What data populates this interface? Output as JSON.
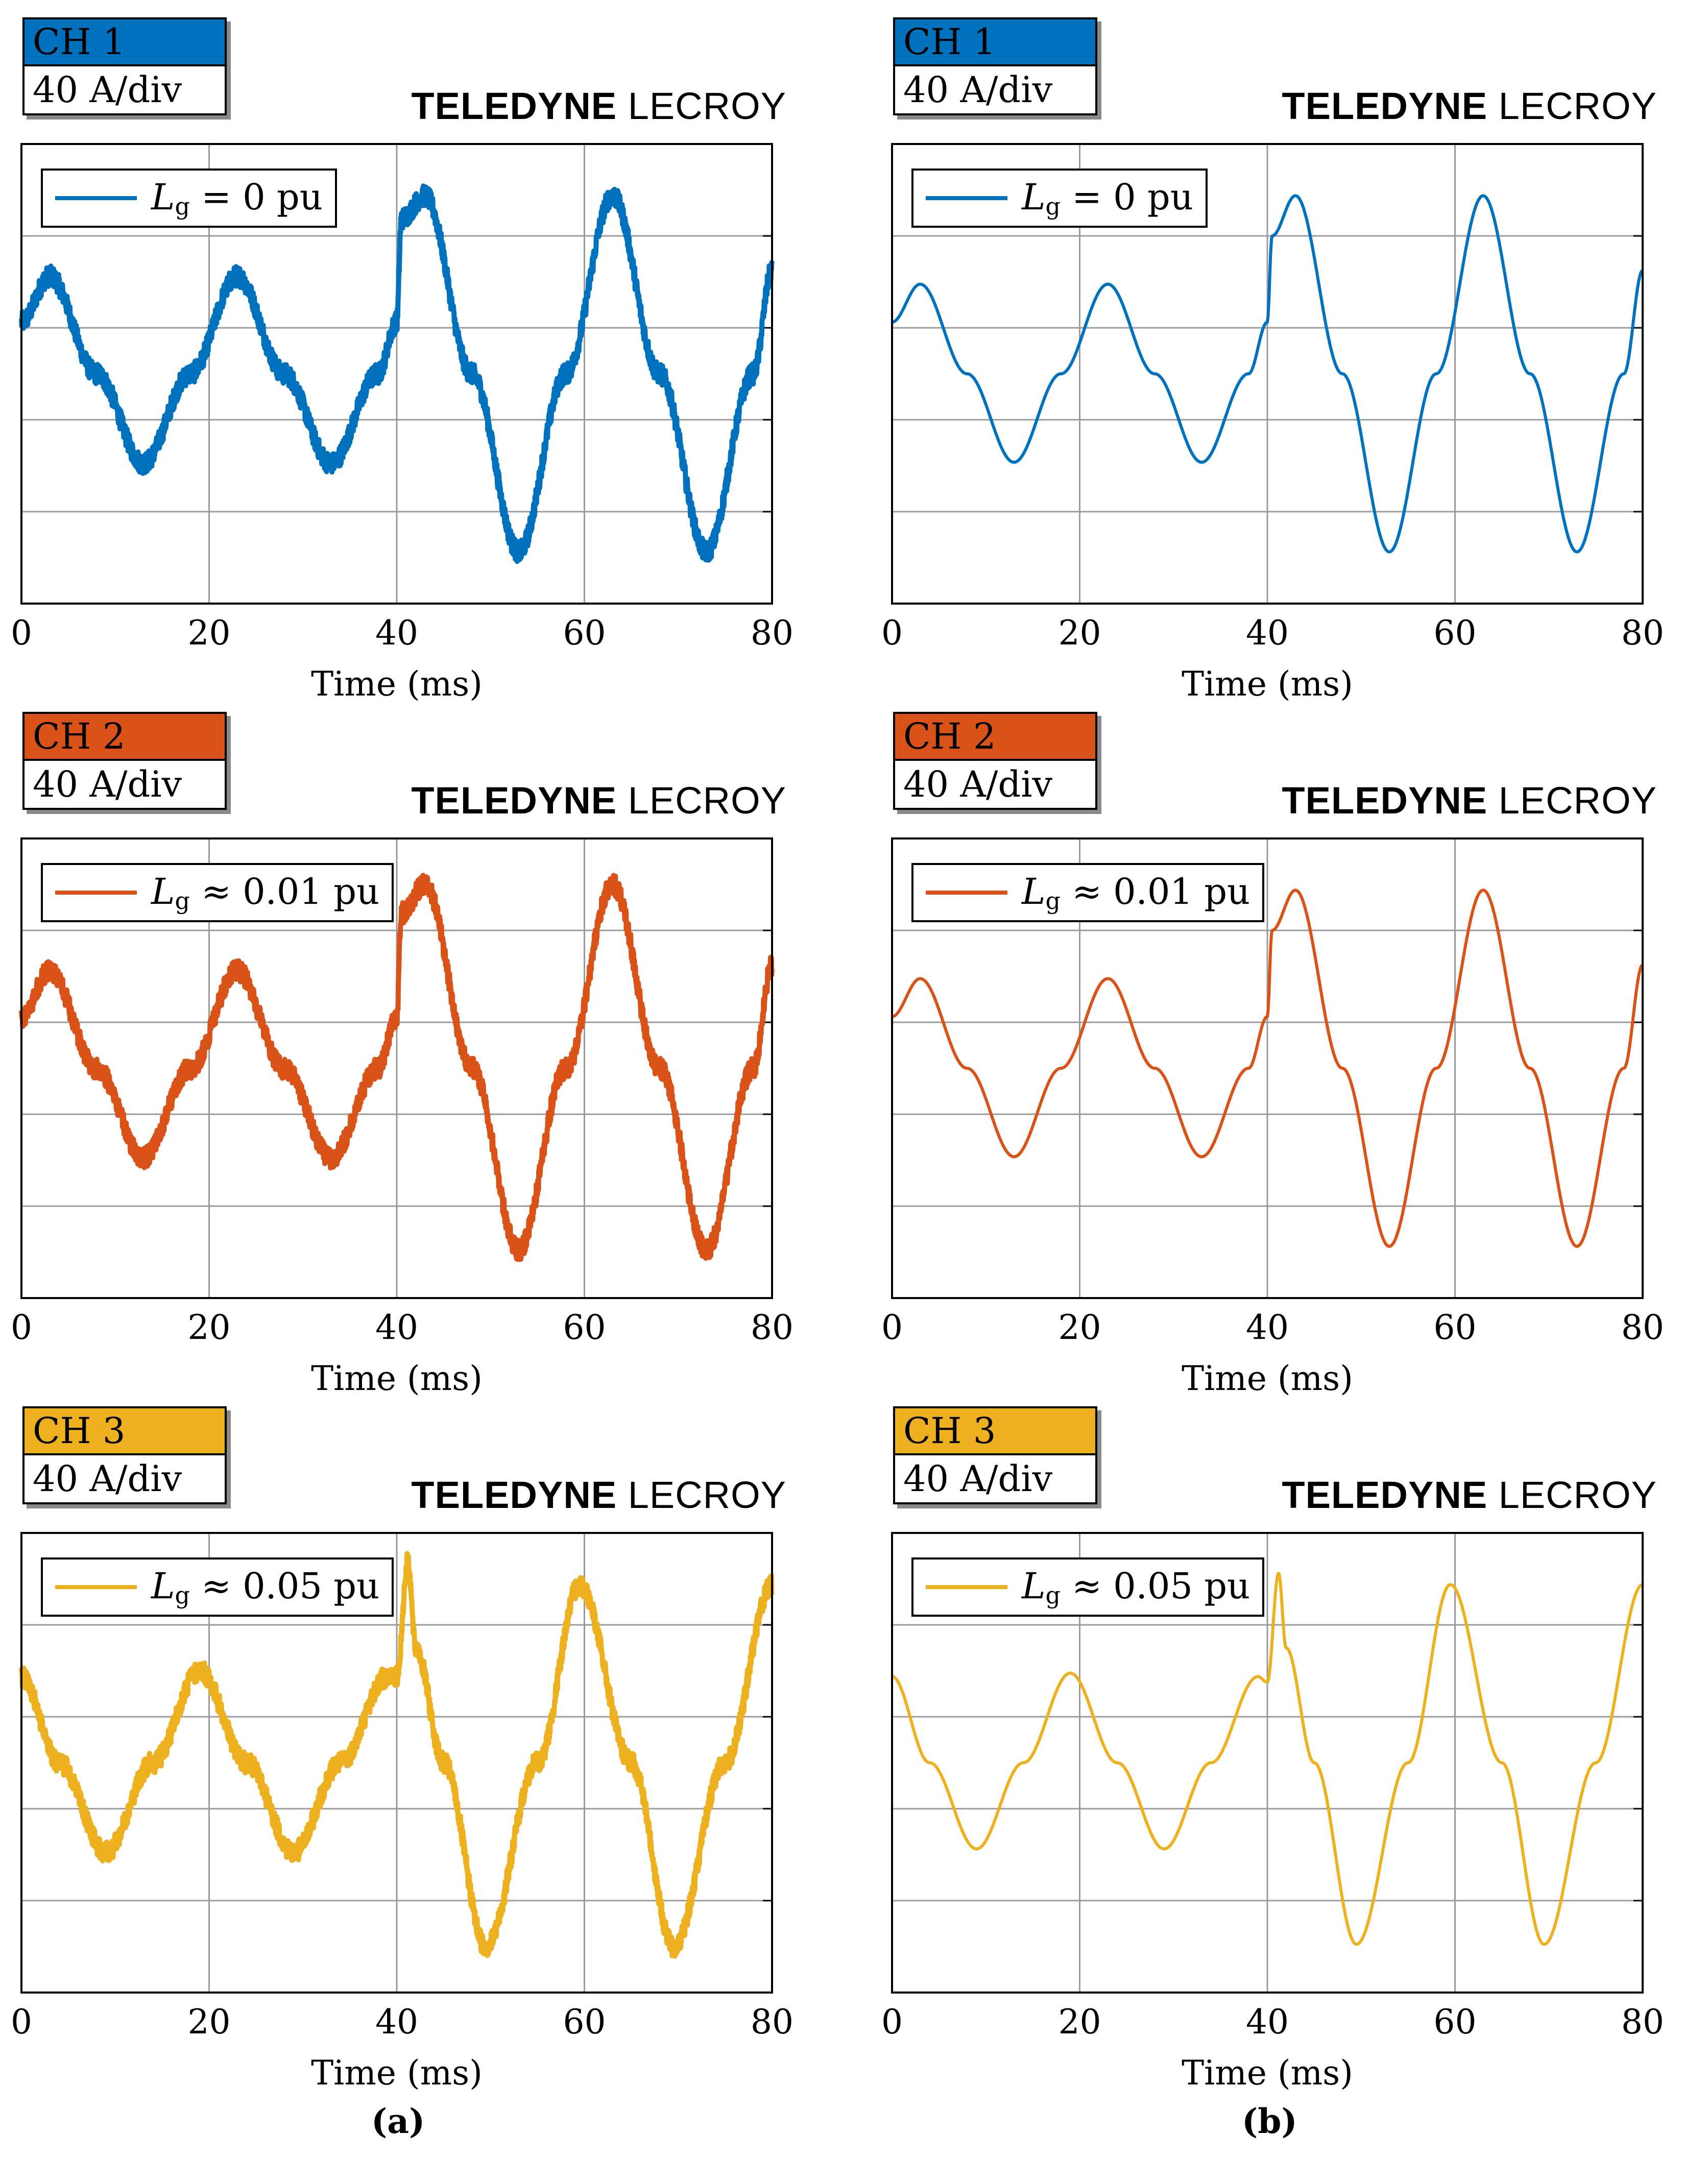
{
  "panels": [
    {
      "channel": "CH 1",
      "scale": "40 A/div",
      "brand_bold": "TELEDYNE",
      "brand_light": "LECROY",
      "color": "#0072BD",
      "legend": {
        "symbol": "L",
        "subscript": "g",
        "relation": "= 0 pu"
      },
      "style": "noisy"
    },
    {
      "channel": "CH 1",
      "scale": "40 A/div",
      "brand_bold": "TELEDYNE",
      "brand_light": "LECROY",
      "color": "#0072BD",
      "legend": {
        "symbol": "L",
        "subscript": "g",
        "relation": "= 0 pu"
      },
      "style": "clean"
    },
    {
      "channel": "CH 2",
      "scale": "40 A/div",
      "brand_bold": "TELEDYNE",
      "brand_light": "LECROY",
      "color": "#D95319",
      "legend": {
        "symbol": "L",
        "subscript": "g",
        "relation": "≈ 0.01 pu"
      },
      "style": "noisy"
    },
    {
      "channel": "CH 2",
      "scale": "40 A/div",
      "brand_bold": "TELEDYNE",
      "brand_light": "LECROY",
      "color": "#D95319",
      "legend": {
        "symbol": "L",
        "subscript": "g",
        "relation": "≈ 0.01 pu"
      },
      "style": "clean"
    },
    {
      "channel": "CH 3",
      "scale": "40 A/div",
      "brand_bold": "TELEDYNE",
      "brand_light": "LECROY",
      "color": "#EDB120",
      "legend": {
        "symbol": "L",
        "subscript": "g",
        "relation": "≈ 0.05 pu"
      },
      "style": "noisy"
    },
    {
      "channel": "CH 3",
      "scale": "40 A/div",
      "brand_bold": "TELEDYNE",
      "brand_light": "LECROY",
      "color": "#EDB120",
      "legend": {
        "symbol": "L",
        "subscript": "g",
        "relation": "≈ 0.05 pu"
      },
      "style": "clean"
    }
  ],
  "captions": {
    "left": "(a)",
    "right": "(b)"
  },
  "chart_data": [
    {
      "type": "line",
      "panel": "a-CH1",
      "xlabel": "Time (ms)",
      "ylabel": "",
      "xlim": [
        0,
        80
      ],
      "xticks": [
        0,
        20,
        40,
        60,
        80
      ],
      "ylim": [
        -2.0,
        2.0
      ],
      "y_divisions": 5,
      "grid": true,
      "series": [
        {
          "name": "L_g = 0 pu",
          "x": [
            0,
            3,
            8,
            13,
            18,
            23,
            28,
            33,
            38,
            40,
            40.5,
            43,
            48,
            53,
            58,
            63,
            68,
            73,
            78,
            80
          ],
          "y": [
            0.45,
            0.85,
            0.0,
            -0.78,
            0.0,
            0.85,
            0.0,
            -0.78,
            0.0,
            0.45,
            1.35,
            1.55,
            0.0,
            -1.55,
            0.0,
            1.55,
            0.0,
            -1.55,
            0.0,
            0.9
          ]
        }
      ]
    },
    {
      "type": "line",
      "panel": "b-CH1",
      "xlabel": "Time (ms)",
      "ylabel": "",
      "xlim": [
        0,
        80
      ],
      "xticks": [
        0,
        20,
        40,
        60,
        80
      ],
      "ylim": [
        -2.0,
        2.0
      ],
      "y_divisions": 5,
      "grid": true,
      "series": [
        {
          "name": "L_g = 0 pu",
          "x": [
            0,
            3,
            8,
            13,
            18,
            23,
            28,
            33,
            38,
            40,
            40.5,
            43,
            48,
            53,
            58,
            63,
            68,
            73,
            78,
            80
          ],
          "y": [
            0.45,
            0.78,
            0.0,
            -0.77,
            0.0,
            0.78,
            0.0,
            -0.77,
            0.0,
            0.45,
            1.2,
            1.55,
            0.0,
            -1.55,
            0.0,
            1.55,
            0.0,
            -1.55,
            0.0,
            0.9
          ]
        }
      ]
    },
    {
      "type": "line",
      "panel": "a-CH2",
      "xlabel": "Time (ms)",
      "ylabel": "",
      "xlim": [
        0,
        80
      ],
      "xticks": [
        0,
        20,
        40,
        60,
        80
      ],
      "ylim": [
        -2.0,
        2.0
      ],
      "y_divisions": 5,
      "grid": true,
      "series": [
        {
          "name": "L_g ≈ 0.01 pu",
          "x": [
            0,
            3,
            8,
            13,
            18,
            23,
            28,
            33,
            38,
            40,
            40.5,
            43,
            48,
            53,
            58,
            63,
            68,
            73,
            78,
            80
          ],
          "y": [
            0.45,
            0.85,
            0.0,
            -0.78,
            0.0,
            0.85,
            0.0,
            -0.78,
            0.0,
            0.45,
            1.35,
            1.6,
            0.0,
            -1.58,
            0.0,
            1.6,
            0.0,
            -1.58,
            0.0,
            0.9
          ]
        }
      ]
    },
    {
      "type": "line",
      "panel": "b-CH2",
      "xlabel": "Time (ms)",
      "ylabel": "",
      "xlim": [
        0,
        80
      ],
      "xticks": [
        0,
        20,
        40,
        60,
        80
      ],
      "ylim": [
        -2.0,
        2.0
      ],
      "y_divisions": 5,
      "grid": true,
      "series": [
        {
          "name": "L_g ≈ 0.01 pu",
          "x": [
            0,
            3,
            8,
            13,
            18,
            23,
            28,
            33,
            38,
            40,
            40.5,
            43,
            48,
            53,
            58,
            63,
            68,
            73,
            78,
            80
          ],
          "y": [
            0.45,
            0.78,
            0.0,
            -0.77,
            0.0,
            0.78,
            0.0,
            -0.77,
            0.0,
            0.45,
            1.2,
            1.55,
            0.0,
            -1.55,
            0.0,
            1.55,
            0.0,
            -1.55,
            0.0,
            0.9
          ]
        }
      ]
    },
    {
      "type": "line",
      "panel": "a-CH3",
      "xlabel": "Time (ms)",
      "ylabel": "",
      "xlim": [
        0,
        80
      ],
      "xticks": [
        0,
        20,
        40,
        60,
        80
      ],
      "ylim": [
        -2.0,
        2.0
      ],
      "y_divisions": 5,
      "grid": true,
      "series": [
        {
          "name": "L_g ≈ 0.05 pu",
          "x": [
            0,
            4,
            9,
            14,
            19,
            24,
            29,
            34,
            39,
            40,
            41.2,
            42,
            45,
            49.5,
            55,
            59.5,
            65,
            69.5,
            75,
            80
          ],
          "y": [
            0.75,
            0.0,
            -0.78,
            0.0,
            0.8,
            0.0,
            -0.78,
            0.0,
            0.75,
            0.75,
            1.75,
            1.0,
            0.0,
            -1.6,
            0.0,
            1.55,
            0.0,
            -1.6,
            0.0,
            1.55
          ]
        }
      ]
    },
    {
      "type": "line",
      "panel": "b-CH3",
      "xlabel": "Time (ms)",
      "ylabel": "",
      "xlim": [
        0,
        80
      ],
      "xticks": [
        0,
        20,
        40,
        60,
        80
      ],
      "ylim": [
        -2.0,
        2.0
      ],
      "y_divisions": 5,
      "grid": true,
      "series": [
        {
          "name": "L_g ≈ 0.05 pu",
          "x": [
            0,
            4,
            9,
            14,
            19,
            24,
            29,
            34,
            39,
            40,
            41.2,
            42,
            45,
            49.5,
            55,
            59.5,
            65,
            69.5,
            75,
            80
          ],
          "y": [
            0.75,
            0.0,
            -0.75,
            0.0,
            0.78,
            0.0,
            -0.75,
            0.0,
            0.75,
            0.7,
            1.65,
            1.0,
            0.0,
            -1.58,
            0.0,
            1.55,
            0.0,
            -1.58,
            0.0,
            1.55
          ]
        }
      ]
    }
  ]
}
